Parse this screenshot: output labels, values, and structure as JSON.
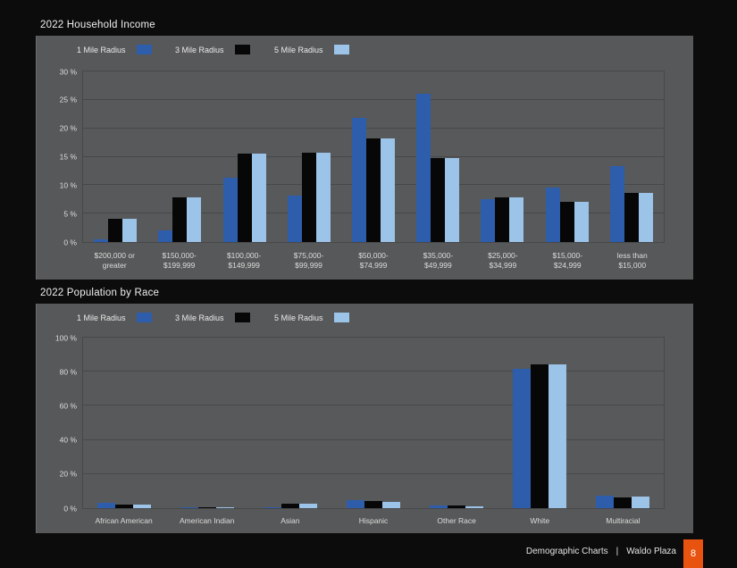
{
  "colors": {
    "accent": "#e85410",
    "panel_gray": "#575859",
    "page_background": "#0c0c0d",
    "series_1_mile": "#2e5dab",
    "series_3_mile": "#070708",
    "series_5_mile": "#9cc3e8"
  },
  "chart_data": [
    {
      "type": "bar",
      "title": "2022 Household Income",
      "categories": [
        "$200,000 or greater",
        "$150,000-$199,999",
        "$100,000-$149,999",
        "$75,000-$99,999",
        "$50,000-$74,999",
        "$35,000-$49,999",
        "$25,000-$34,999",
        "$15,000-$24,999",
        "less than $15,000"
      ],
      "category_lines": [
        [
          "$200,000 or",
          "greater"
        ],
        [
          "$150,000-",
          "$199,999"
        ],
        [
          "$100,000-",
          "$149,999"
        ],
        [
          "$75,000-",
          "$99,999"
        ],
        [
          "$50,000-",
          "$74,999"
        ],
        [
          "$35,000-",
          "$49,999"
        ],
        [
          "$25,000-",
          "$34,999"
        ],
        [
          "$15,000-",
          "$24,999"
        ],
        [
          "less than",
          "$15,000"
        ]
      ],
      "series": [
        {
          "name": "1 Mile Radius",
          "color": "#2e5dab",
          "values": [
            0.5,
            2.0,
            11.3,
            8.2,
            21.8,
            26.0,
            7.5,
            9.6,
            13.4
          ]
        },
        {
          "name": "3 Mile Radius",
          "color": "#070708",
          "values": [
            4.1,
            7.8,
            15.5,
            15.7,
            18.3,
            14.7,
            7.8,
            7.1,
            8.7
          ]
        },
        {
          "name": "5 Mile Radius",
          "color": "#9cc3e8",
          "values": [
            4.1,
            7.8,
            15.5,
            15.7,
            18.2,
            14.7,
            7.8,
            7.1,
            8.7
          ]
        }
      ],
      "ylim": [
        0,
        30
      ],
      "ytick_step": 5,
      "ytick_suffix": " %",
      "grid": true,
      "legend_position": "top"
    },
    {
      "type": "bar",
      "title": "2022 Population by Race",
      "categories": [
        "African American",
        "American Indian",
        "Asian",
        "Hispanic",
        "Other Race",
        "White",
        "Multiracial"
      ],
      "category_lines": [
        [
          "African American"
        ],
        [
          "American Indian"
        ],
        [
          "Asian"
        ],
        [
          "Hispanic"
        ],
        [
          "Other Race"
        ],
        [
          "White"
        ],
        [
          "Multiracial"
        ]
      ],
      "series": [
        {
          "name": "1 Mile Radius",
          "color": "#2e5dab",
          "values": [
            3.3,
            0.7,
            0.4,
            4.8,
            1.5,
            81.5,
            7.5
          ]
        },
        {
          "name": "3 Mile Radius",
          "color": "#070708",
          "values": [
            2.2,
            0.5,
            2.7,
            4.2,
            1.7,
            84.5,
            6.3
          ]
        },
        {
          "name": "5 Mile Radius",
          "color": "#9cc3e8",
          "values": [
            1.9,
            0.4,
            2.4,
            3.7,
            1.2,
            84.3,
            6.6
          ]
        }
      ],
      "ylim": [
        0,
        100
      ],
      "ytick_step": 20,
      "ytick_suffix": " %",
      "grid": true,
      "legend_position": "top"
    }
  ],
  "footer": {
    "section_label": "Demographic Charts",
    "divider": "|",
    "project_label": "Waldo Plaza",
    "page_number": "8"
  }
}
